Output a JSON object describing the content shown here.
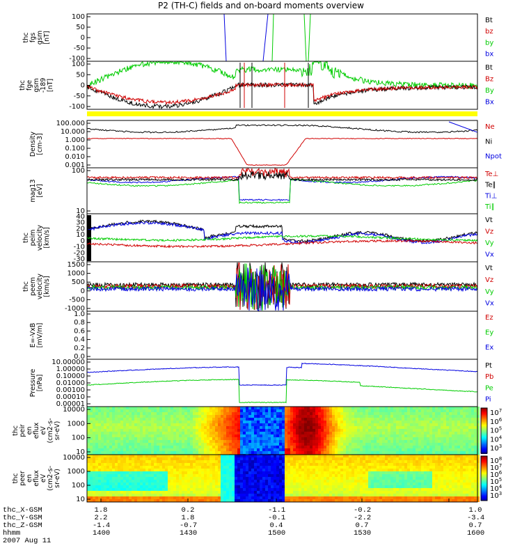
{
  "title": "P2 (TH-C) fields and on-board moments overview",
  "date": "2007 Aug 11",
  "colors": {
    "black": "#000000",
    "red": "#d00000",
    "green": "#00cc00",
    "blue": "#0000e0",
    "yellow": "#ffff00"
  },
  "chart_data": [
    {
      "id": "fgs",
      "type": "line",
      "ylabel": [
        "thc",
        "fgs",
        "gsm",
        "[nT]"
      ],
      "yticks": [
        "100",
        "50",
        "0",
        "-50",
        "-100"
      ],
      "ylim": [
        -100,
        100
      ],
      "legend": [
        {
          "name": "Bt",
          "color": "black"
        },
        {
          "name": "bz",
          "color": "red"
        },
        {
          "name": "by",
          "color": "green"
        },
        {
          "name": "bx",
          "color": "blue"
        }
      ]
    },
    {
      "id": "fge",
      "type": "line",
      "ylabel": [
        "thc",
        "fge",
        "gsm",
        "-189",
        "[nT]"
      ],
      "yticks": [
        "100",
        "50",
        "0",
        "-50",
        "-100"
      ],
      "ylim": [
        -120,
        100
      ],
      "legend": [
        {
          "name": "Bt",
          "color": "black"
        },
        {
          "name": "Bz",
          "color": "red"
        },
        {
          "name": "By",
          "color": "green"
        },
        {
          "name": "Bx",
          "color": "blue"
        }
      ]
    },
    {
      "id": "density",
      "type": "line",
      "ylabel": [
        "Density",
        "[cm-3]"
      ],
      "yticks": [
        "100.000",
        "10.000",
        "1.000",
        "0.100",
        "0.010",
        "0.001"
      ],
      "log": true,
      "ylim": [
        0.001,
        100
      ],
      "legend": [
        {
          "name": "Ne",
          "color": "red"
        },
        {
          "name": "Ni",
          "color": "black"
        },
        {
          "name": "Npot",
          "color": "blue"
        }
      ]
    },
    {
      "id": "temp",
      "type": "line",
      "ylabel": [
        "mag13",
        "[eV]"
      ],
      "yticks": [
        "100",
        "10"
      ],
      "log": true,
      "legend": [
        {
          "name": "Te⊥",
          "color": "red"
        },
        {
          "name": "Te∥",
          "color": "black"
        },
        {
          "name": "Ti⊥",
          "color": "blue"
        },
        {
          "name": "Ti∥",
          "color": "green"
        }
      ]
    },
    {
      "id": "peim",
      "type": "line",
      "ylabel": [
        "thc",
        "peim",
        "velocity",
        "[km/s]"
      ],
      "yticks": [
        "40",
        "30",
        "20",
        "10",
        "0",
        "-10",
        "-20",
        "-30"
      ],
      "ylim": [
        -30,
        40
      ],
      "legend": [
        {
          "name": "Vt",
          "color": "black"
        },
        {
          "name": "Vz",
          "color": "red"
        },
        {
          "name": "Vy",
          "color": "green"
        },
        {
          "name": "Vx",
          "color": "blue"
        }
      ]
    },
    {
      "id": "peem",
      "type": "line",
      "ylabel": [
        "thc",
        "peem",
        "velocity",
        "[km/s]"
      ],
      "yticks": [
        "1500",
        "1000",
        "500",
        "0",
        "-500",
        "-1000"
      ],
      "ylim": [
        -1300,
        1500
      ],
      "legend": [
        {
          "name": "Vt",
          "color": "black"
        },
        {
          "name": "Vz",
          "color": "red"
        },
        {
          "name": "Vy",
          "color": "green"
        },
        {
          "name": "Vx",
          "color": "blue"
        }
      ]
    },
    {
      "id": "efield",
      "type": "line",
      "ylabel": [
        "E=-VxB",
        "[mV/m]"
      ],
      "yticks": [
        "1.0",
        "0.8",
        "0.6",
        "0.4",
        "0.2",
        "0.0"
      ],
      "ylim": [
        0,
        1
      ],
      "legend": [
        {
          "name": "Ez",
          "color": "red"
        },
        {
          "name": "Ey",
          "color": "green"
        },
        {
          "name": "Ex",
          "color": "blue"
        }
      ]
    },
    {
      "id": "pressure",
      "type": "line",
      "ylabel": [
        "Pressure",
        "[nPa]"
      ],
      "yticks": [
        "10.00000",
        "1.00000",
        "0.10000",
        "0.01000",
        "0.00100",
        "0.00010",
        "0.00001"
      ],
      "log": true,
      "legend": [
        {
          "name": "Pt",
          "color": "black"
        },
        {
          "name": "Pb",
          "color": "red"
        },
        {
          "name": "Pe",
          "color": "green"
        },
        {
          "name": "Pi",
          "color": "blue"
        }
      ]
    },
    {
      "id": "peir",
      "type": "heatmap",
      "ylabel": [
        "thc",
        "peir",
        "en",
        "eflux",
        "eV",
        "(cm2-s-",
        "sr-eV)"
      ],
      "yticks": [
        "10000",
        "1000",
        "100",
        "10"
      ],
      "colorbar_exponents": [
        "7",
        "6",
        "5",
        "4",
        "3"
      ]
    },
    {
      "id": "peer",
      "type": "heatmap",
      "ylabel": [
        "thc",
        "peer",
        "en",
        "eflux",
        "eV",
        "(cm2-s-",
        "sr-eV)"
      ],
      "yticks": [
        "10000",
        "1000",
        "100",
        "10"
      ],
      "colorbar_exponents": [
        "8",
        "7",
        "6",
        "5",
        "4",
        "3"
      ]
    }
  ],
  "ephemeris": {
    "labels": [
      "thc_X-GSM",
      "thc_Y-GSM",
      "thc_Z-GSM",
      "hhmm"
    ],
    "columns": [
      {
        "x": "1.8",
        "y": "2.2",
        "z": "-1.4",
        "t": "1400"
      },
      {
        "x": "0.2",
        "y": "1.8",
        "z": "-0.7",
        "t": "1430"
      },
      {
        "x": "-1.1",
        "y": "-0.1",
        "z": "0.4",
        "t": "1500"
      },
      {
        "x": "-0.2",
        "y": "-2.2",
        "z": "0.7",
        "t": "1530"
      },
      {
        "x": "1.0",
        "y": "-3.4",
        "z": "0.7",
        "t": "1600"
      }
    ]
  }
}
